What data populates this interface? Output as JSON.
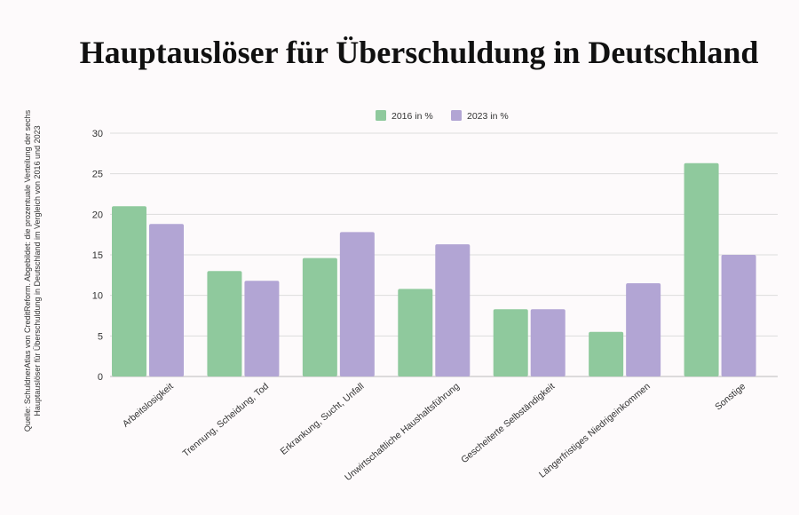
{
  "source_note": {
    "line1": "Quelle: SchuldnerAtlas von CreditReform. Abgebildet: die prozentuale Verteilung der sechs",
    "line2": "Hauptauslöser für Überschuldung in Deutschland im Vergleich von 2016 und 2023"
  },
  "colors": {
    "series_2016": "#8fc99d",
    "series_2023": "#b2a5d4",
    "grid": "#dddddd",
    "text": "#333333"
  },
  "chart_data": {
    "type": "bar",
    "title": "Hauptauslöser für Überschuldung in Deutschland",
    "xlabel": "",
    "ylabel": "",
    "ylim": [
      0,
      30
    ],
    "yticks": [
      0,
      5,
      10,
      15,
      20,
      25,
      30
    ],
    "grid": true,
    "legend_position": "top-center",
    "categories": [
      "Arbeitslosigkeit",
      "Trennung, Scheidung, Tod",
      "Erkrankung, Sucht, Unfall",
      "Unwirtschaftliche Haushaltsführung",
      "Gescheiterte Selbständigkeit",
      "Längerfristiges Niedrigeinkommen",
      "Sonstige"
    ],
    "series": [
      {
        "name": "2016 in %",
        "values": [
          21,
          13,
          14.6,
          10.8,
          8.3,
          5.5,
          26.3
        ]
      },
      {
        "name": "2023 in %",
        "values": [
          18.8,
          11.8,
          17.8,
          16.3,
          8.3,
          11.5,
          15
        ]
      }
    ]
  }
}
